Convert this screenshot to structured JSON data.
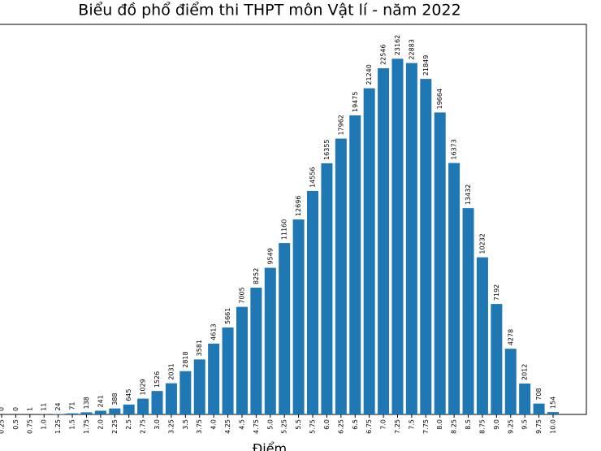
{
  "chart_data": {
    "type": "bar",
    "title": "Biểu đồ phổ điểm thi THPT môn Vật lí - năm 2022",
    "x_label": "Điểm",
    "categories": [
      "0.25",
      "0.5",
      "0.75",
      "1.0",
      "1.25",
      "1.5",
      "1.75",
      "2.0",
      "2.25",
      "2.5",
      "2.75",
      "3.0",
      "3.25",
      "3.5",
      "3.75",
      "4.0",
      "4.25",
      "4.5",
      "4.75",
      "5.0",
      "5.25",
      "5.5",
      "5.75",
      "6.0",
      "6.25",
      "6.5",
      "6.75",
      "7.0",
      "7.25",
      "7.5",
      "7.75",
      "8.0",
      "8.25",
      "8.5",
      "8.75",
      "9.0",
      "9.25",
      "9.5",
      "9.75",
      "10.0"
    ],
    "values": [
      0,
      0,
      1,
      11,
      24,
      71,
      138,
      241,
      388,
      645,
      1029,
      1526,
      2031,
      2818,
      3581,
      4613,
      5661,
      7005,
      8252,
      9549,
      11160,
      12696,
      14556,
      16355,
      17962,
      19475,
      21240,
      22546,
      23162,
      22883,
      21849,
      19664,
      16373,
      13432,
      10232,
      7192,
      4278,
      2012,
      708,
      154
    ],
    "color": "#1f77b4",
    "ylim": [
      0,
      25400
    ]
  }
}
